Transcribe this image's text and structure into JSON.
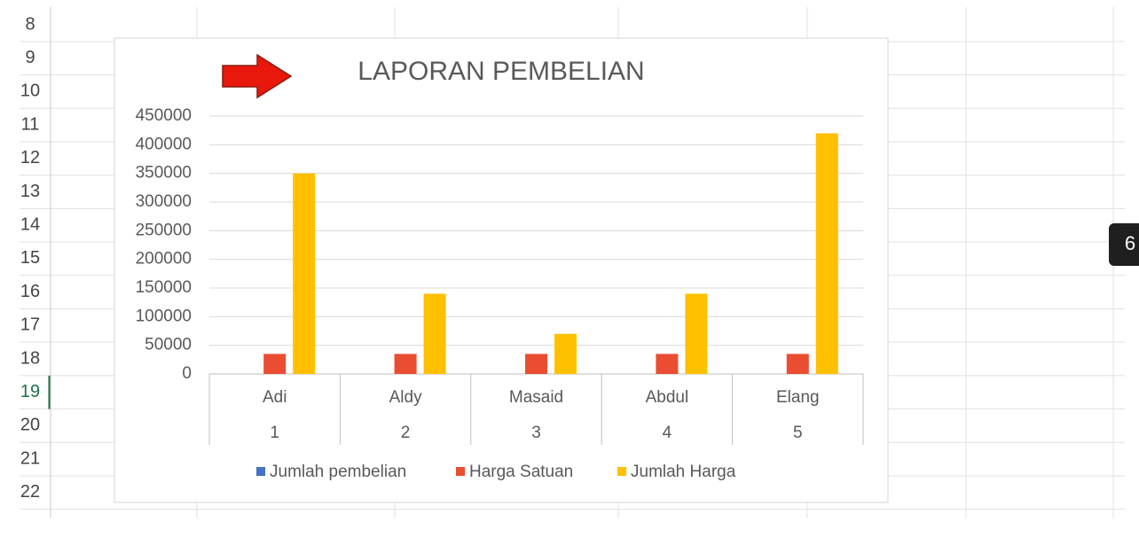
{
  "spreadsheet": {
    "rows": [
      "8",
      "9",
      "10",
      "11",
      "12",
      "13",
      "14",
      "15",
      "16",
      "17",
      "18",
      "19",
      "20",
      "21",
      "22"
    ],
    "active_row": "19",
    "badge": "6"
  },
  "chart_data": {
    "type": "bar",
    "title": "LAPORAN PEMBELIAN",
    "categories": [
      "Adi",
      "Aldy",
      "Masaid",
      "Abdul",
      "Elang"
    ],
    "category_ids": [
      1,
      2,
      3,
      4,
      5
    ],
    "series": [
      {
        "name": "Jumlah pembelian",
        "color": "#4472c4",
        "values": [
          10,
          4,
          2,
          4,
          12
        ]
      },
      {
        "name": "Harga Satuan",
        "color": "#ea4d31",
        "values": [
          35000,
          35000,
          35000,
          35000,
          35000
        ]
      },
      {
        "name": "Jumlah Harga",
        "color": "#ffc000",
        "values": [
          350000,
          140000,
          70000,
          140000,
          420000
        ]
      }
    ],
    "ylim": [
      0,
      450000
    ],
    "yticks": [
      0,
      50000,
      100000,
      150000,
      200000,
      250000,
      300000,
      350000,
      400000,
      450000
    ],
    "grid": true,
    "legend": "bottom"
  }
}
